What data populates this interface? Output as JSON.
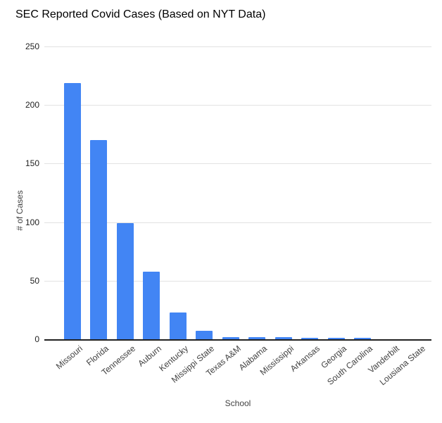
{
  "chart_data": {
    "type": "bar",
    "title": "SEC Reported Covid Cases (Based on NYT Data)",
    "xlabel": "School",
    "ylabel": "# of Cases",
    "categories": [
      "Missouri",
      "Florida",
      "Tennessee",
      "Auburn",
      "Kentucky",
      "Missippi State",
      "Texas A&M",
      "Alabama",
      "Mississippi",
      "Arkansas",
      "Georgia",
      "South Carolina",
      "Vanderbilt",
      "Lousiana State"
    ],
    "values": [
      219,
      170,
      99,
      58,
      23,
      7,
      2,
      2,
      2,
      1,
      1,
      1,
      0,
      0
    ],
    "ylim": [
      0,
      250
    ],
    "yticks": [
      0,
      50,
      100,
      150,
      200,
      250
    ],
    "grid": true,
    "legend": "none",
    "bar_color": "#4285F4",
    "gridline_color": "#e2e2e2",
    "axis_line_color": "#212121",
    "tick_label_color": "#222222",
    "category_label_color": "#424242",
    "title_color": "#000000"
  }
}
